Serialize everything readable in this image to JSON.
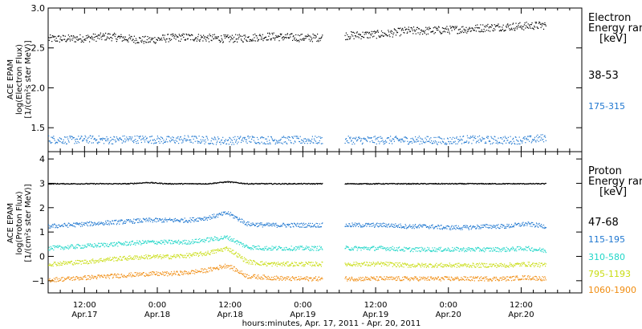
{
  "chart_data": [
    {
      "type": "scatter",
      "ylabel_lines": [
        "ACE EPAM",
        "log(Electron Flux)",
        "[1/(cm²s ster MeV)]"
      ],
      "ylim": [
        1.2,
        3.0
      ],
      "yticks": [
        "3.0",
        "2.5",
        "2.0",
        "1.5"
      ],
      "ytick_values": [
        3.0,
        2.5,
        2.0,
        1.5
      ],
      "xlim": [
        0,
        88
      ],
      "gap": [
        45.2,
        48.8
      ],
      "legend_title": [
        "Electron",
        "Energy range",
        "[keV]"
      ],
      "series": [
        {
          "name": "38-53",
          "color": "#000000",
          "values": [
            2.62,
            2.62,
            2.63,
            2.65,
            2.62,
            2.6,
            2.63,
            2.64,
            2.63,
            2.62,
            2.63,
            2.65,
            2.64,
            2.63,
            2.64,
            2.66,
            2.67,
            2.68,
            2.72,
            2.72,
            2.73,
            2.74,
            2.76,
            2.77,
            2.78,
            2.79
          ]
        },
        {
          "name": "175-315",
          "color": "#1f77d0",
          "values": [
            1.36,
            1.35,
            1.36,
            1.35,
            1.36,
            1.36,
            1.35,
            1.36,
            1.35,
            1.34,
            1.36,
            1.35,
            1.35,
            1.35,
            1.35,
            1.35,
            1.35,
            1.35,
            1.35,
            1.35,
            1.34,
            1.36,
            1.35,
            1.35,
            1.35,
            1.38
          ]
        }
      ]
    },
    {
      "type": "scatter",
      "ylabel_lines": [
        "ACE EPAM",
        "log(Proton Flux)",
        "[1/(cm²s ster MeV)]"
      ],
      "ylim": [
        -1.5,
        4.3
      ],
      "yticks": [
        "4",
        "3",
        "2",
        "1",
        "0",
        "−1"
      ],
      "ytick_values": [
        4,
        3,
        2,
        1,
        0,
        -1
      ],
      "xlim": [
        0,
        88
      ],
      "gap": [
        45.2,
        48.8
      ],
      "legend_title": [
        "Proton",
        "Energy range",
        "[keV]"
      ],
      "series": [
        {
          "name": "47-68",
          "color": "#000000",
          "values": [
            3.0,
            3.0,
            3.0,
            3.0,
            3.0,
            3.05,
            3.0,
            3.0,
            3.0,
            3.08,
            3.0,
            3.0,
            3.0,
            3.0,
            3.0,
            3.0,
            3.0,
            3.0,
            3.0,
            3.0,
            3.0,
            3.0,
            3.0,
            3.0,
            3.0,
            3.0
          ]
        },
        {
          "name": "115-195",
          "color": "#1f77d0",
          "values": [
            1.25,
            1.3,
            1.35,
            1.4,
            1.45,
            1.5,
            1.5,
            1.5,
            1.6,
            1.8,
            1.35,
            1.3,
            1.3,
            1.3,
            1.3,
            1.3,
            1.3,
            1.3,
            1.25,
            1.25,
            1.2,
            1.2,
            1.25,
            1.25,
            1.35,
            1.25
          ]
        },
        {
          "name": "310-580",
          "color": "#20d6c8",
          "values": [
            0.35,
            0.4,
            0.45,
            0.5,
            0.55,
            0.6,
            0.6,
            0.6,
            0.7,
            0.8,
            0.4,
            0.35,
            0.35,
            0.35,
            0.35,
            0.35,
            0.35,
            0.35,
            0.3,
            0.3,
            0.3,
            0.3,
            0.3,
            0.3,
            0.35,
            0.25
          ]
        },
        {
          "name": "795-1193",
          "color": "#c8dc10",
          "values": [
            -0.3,
            -0.25,
            -0.2,
            -0.1,
            -0.05,
            0.0,
            0.0,
            0.05,
            0.15,
            0.35,
            -0.2,
            -0.3,
            -0.3,
            -0.3,
            -0.3,
            -0.3,
            -0.3,
            -0.3,
            -0.35,
            -0.35,
            -0.35,
            -0.35,
            -0.35,
            -0.35,
            -0.3,
            -0.35
          ]
        },
        {
          "name": "1060-1900",
          "color": "#f08c10",
          "values": [
            -0.95,
            -0.9,
            -0.85,
            -0.8,
            -0.75,
            -0.7,
            -0.7,
            -0.65,
            -0.55,
            -0.35,
            -0.8,
            -0.85,
            -0.9,
            -0.9,
            -0.9,
            -0.9,
            -0.9,
            -0.9,
            -0.9,
            -0.9,
            -0.9,
            -0.9,
            -0.9,
            -0.9,
            -0.85,
            -0.9
          ]
        }
      ]
    }
  ],
  "xaxis": {
    "ticks": [
      {
        "t": 6,
        "time": "12:00",
        "date": "Apr.17"
      },
      {
        "t": 18,
        "time": "0:00",
        "date": "Apr.18"
      },
      {
        "t": 30,
        "time": "12:00",
        "date": "Apr.18"
      },
      {
        "t": 42,
        "time": "0:00",
        "date": "Apr.19"
      },
      {
        "t": 54,
        "time": "12:00",
        "date": "Apr.19"
      },
      {
        "t": 66,
        "time": "0:00",
        "date": "Apr.20"
      },
      {
        "t": 78,
        "time": "12:00",
        "date": "Apr.20"
      }
    ],
    "label": "hours:minutes, Apr. 17, 2011 - Apr. 20, 2011"
  }
}
